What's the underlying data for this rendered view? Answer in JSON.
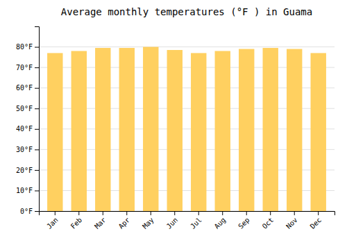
{
  "chart_data": {
    "type": "bar",
    "title": "Average monthly temperatures (°F ) in Guama",
    "categories": [
      "Jan",
      "Feb",
      "Mar",
      "Apr",
      "May",
      "Jun",
      "Jul",
      "Aug",
      "Sep",
      "Oct",
      "Nov",
      "Dec"
    ],
    "values": [
      77.0,
      78.0,
      79.5,
      79.5,
      80.0,
      78.5,
      77.0,
      78.0,
      79.0,
      79.5,
      79.0,
      77.0
    ],
    "color": "#FFD060",
    "ylim": [
      0,
      90
    ],
    "yticks": [
      {
        "value": 0,
        "label": "0°F"
      },
      {
        "value": 10,
        "label": "10°F"
      },
      {
        "value": 20,
        "label": "20°F"
      },
      {
        "value": 30,
        "label": "30°F"
      },
      {
        "value": 40,
        "label": "40°F"
      },
      {
        "value": 50,
        "label": "50°F"
      },
      {
        "value": 60,
        "label": "60°F"
      },
      {
        "value": 70,
        "label": "70°F"
      },
      {
        "value": 80,
        "label": "80°F"
      }
    ],
    "grid": true
  }
}
